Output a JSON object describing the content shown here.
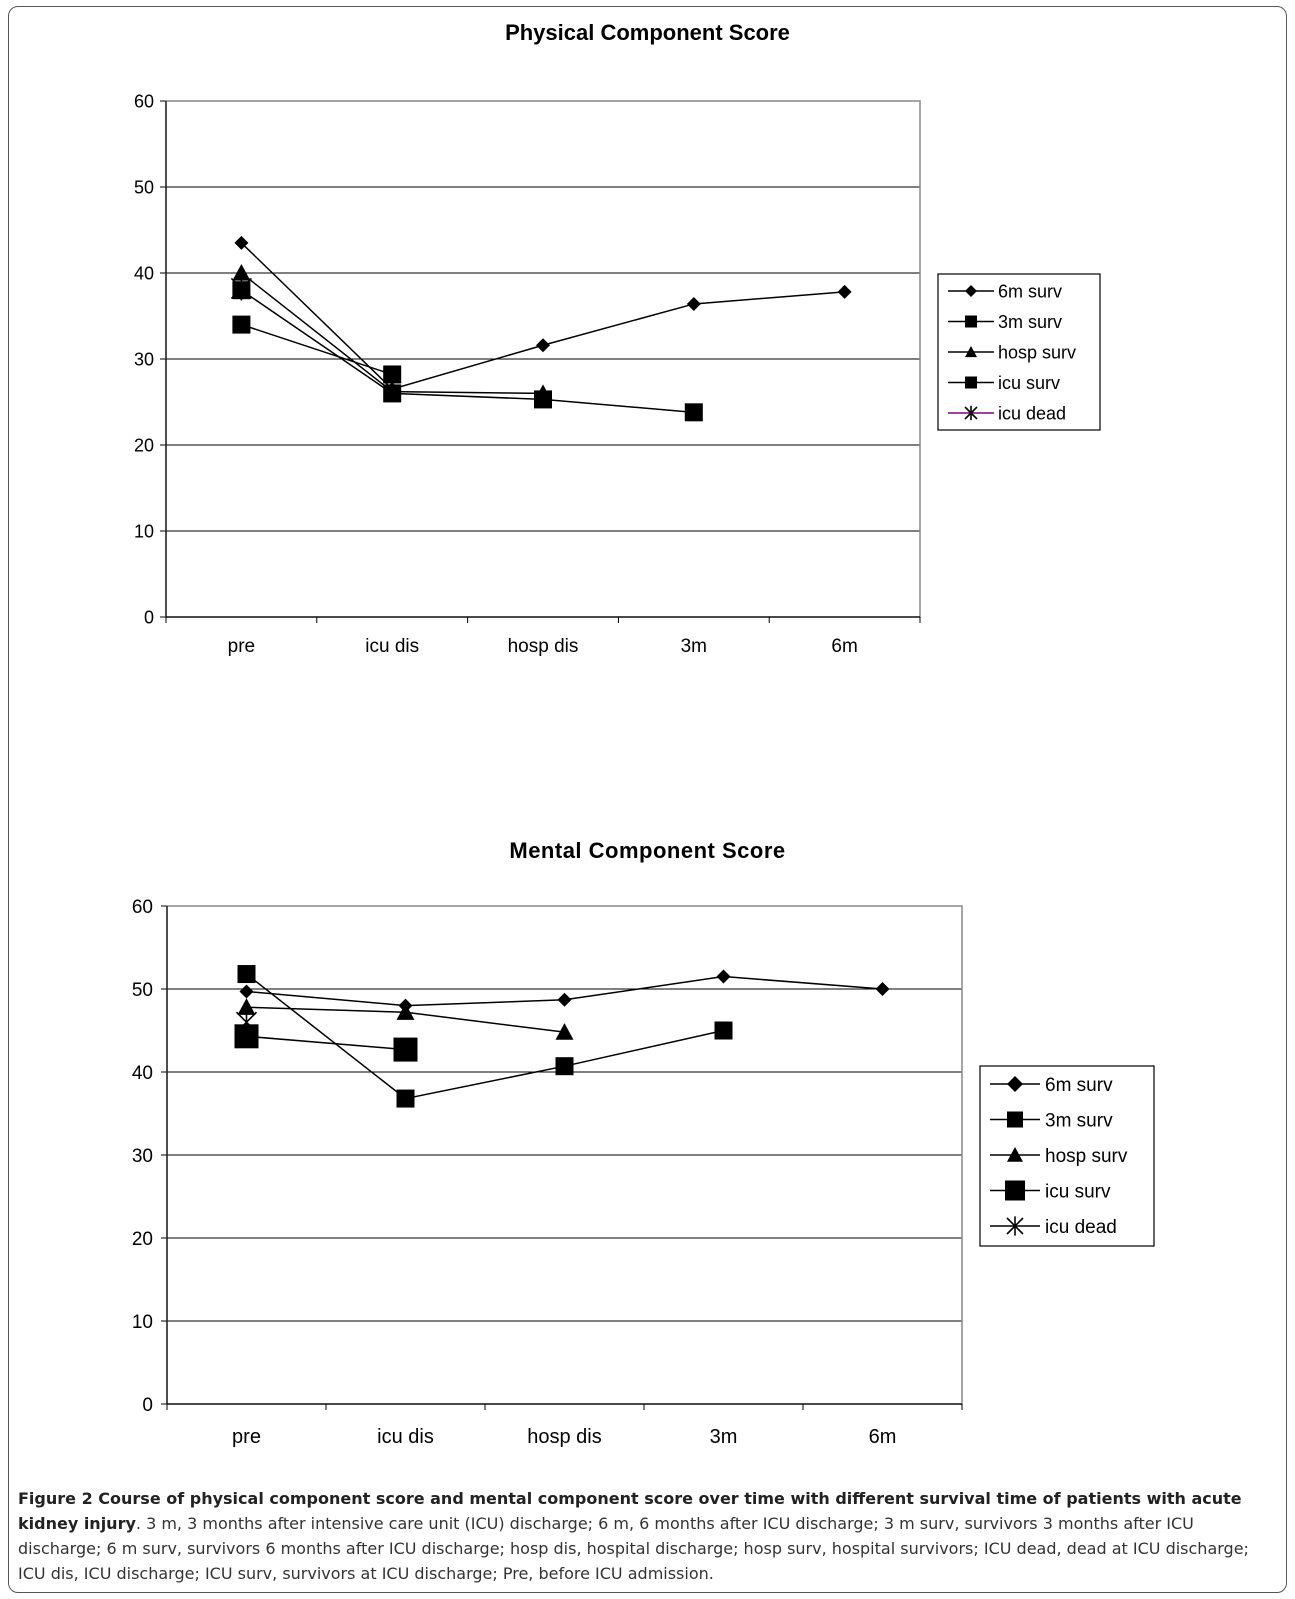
{
  "chart_data": [
    {
      "type": "line",
      "title": "Physical Component Score",
      "categories": [
        "pre",
        "icu dis",
        "hosp dis",
        "3m",
        "6m"
      ],
      "ylim": [
        0,
        60
      ],
      "yticks": [
        "0",
        "10",
        "20",
        "30",
        "40",
        "50",
        "60"
      ],
      "grid": true,
      "legend_position": "right",
      "series": [
        {
          "name": "6m surv",
          "marker": "diamond",
          "values": [
            43.5,
            26.5,
            31.6,
            36.4,
            37.8
          ]
        },
        {
          "name": "3m surv",
          "marker": "square",
          "values": [
            38.0,
            26.0,
            25.3,
            23.8,
            null
          ]
        },
        {
          "name": "hosp surv",
          "marker": "triangle",
          "values": [
            40.0,
            26.2,
            26.0,
            null,
            null
          ]
        },
        {
          "name": "icu surv",
          "marker": "square",
          "values": [
            34.0,
            28.2,
            null,
            null,
            null
          ]
        },
        {
          "name": "icu dead",
          "marker": "asterisk",
          "values": [
            38.2,
            null,
            null,
            null,
            null
          ]
        }
      ]
    },
    {
      "type": "line",
      "title": "Mental Component Score",
      "categories": [
        "pre",
        "icu dis",
        "hosp dis",
        "3m",
        "6m"
      ],
      "ylim": [
        0,
        60
      ],
      "yticks": [
        "0",
        "10",
        "20",
        "30",
        "40",
        "50",
        "60"
      ],
      "grid": true,
      "legend_position": "right",
      "series": [
        {
          "name": "6m surv",
          "marker": "diamond",
          "values": [
            49.7,
            48.0,
            48.7,
            51.5,
            50.0
          ]
        },
        {
          "name": "3m surv",
          "marker": "square",
          "values": [
            51.8,
            36.8,
            40.7,
            45.0,
            null
          ]
        },
        {
          "name": "hosp surv",
          "marker": "triangle",
          "values": [
            47.8,
            47.2,
            44.8,
            null,
            null
          ]
        },
        {
          "name": "icu surv",
          "marker": "square-large",
          "values": [
            44.3,
            42.7,
            null,
            null,
            null
          ]
        },
        {
          "name": "icu dead",
          "marker": "asterisk",
          "values": [
            46.0,
            null,
            null,
            null,
            null
          ]
        }
      ]
    }
  ],
  "colors": {
    "line": "#000000",
    "icu_dead_legend_line": "#7f007f",
    "grid": "#000000"
  },
  "caption": {
    "label": "Figure 2 Course of physical component score and mental component score over time with different survival time of patients with acute kidney injury",
    "text": ". 3 m, 3 months after intensive care unit (ICU) discharge; 6 m, 6 months after ICU discharge; 3 m surv, survivors 3 months after ICU discharge; 6 m surv, survivors 6 months after ICU discharge; hosp dis, hospital discharge; hosp surv, hospital survivors; ICU dead, dead at ICU discharge; ICU dis, ICU discharge; ICU surv, survivors at ICU discharge; Pre, before ICU admission."
  }
}
